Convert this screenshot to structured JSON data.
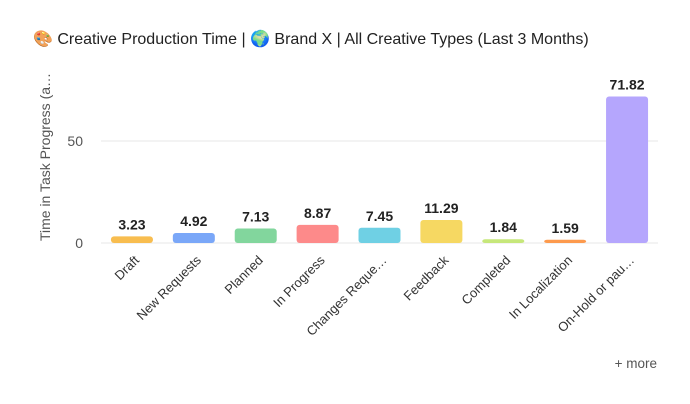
{
  "title": "🎨  Creative Production Time | 🌍  Brand X | All Creative Types (Last 3 Months)",
  "more_label": "+ more",
  "chart_data": {
    "type": "bar",
    "title": "🎨  Creative Production Time | 🌍  Brand X | All Creative Types (Last 3 Months)",
    "ylabel": "Time in Task Progress (a…",
    "xlabel": "",
    "ylim": [
      0,
      75
    ],
    "yticks": [
      0,
      50
    ],
    "grid": true,
    "categories": [
      "Draft",
      "New Requests",
      "Planned",
      "In Progress",
      "Changes Reque…",
      "Feedback",
      "Completed",
      "In Localization",
      "On-Hold or pau…"
    ],
    "values": [
      3.23,
      4.92,
      7.13,
      8.87,
      7.45,
      11.29,
      1.84,
      1.59,
      71.82
    ],
    "data_labels": [
      "3.23",
      "4.92",
      "7.13",
      "8.87",
      "7.45",
      "11.29",
      "1.84",
      "1.59",
      "71.82"
    ],
    "colors": [
      "#f8bd4f",
      "#7aa7f8",
      "#82d69d",
      "#fd8a8a",
      "#6fd0e4",
      "#f6d862",
      "#c6e77a",
      "#fd9a4d",
      "#b5a6fd"
    ]
  }
}
